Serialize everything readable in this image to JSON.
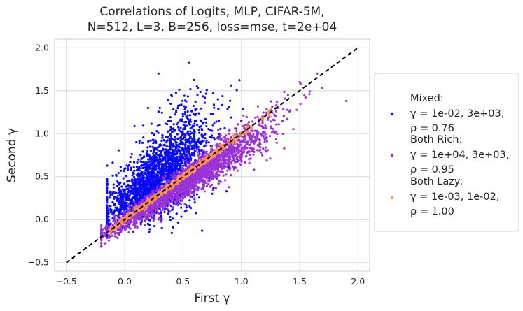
{
  "chart_data": {
    "type": "scatter",
    "title_line1": "Correlations of Logits, MLP, CIFAR-5M,",
    "title_line2": "N=512, L=3, B=256, loss=mse, t=2e+04",
    "xlabel": "First γ",
    "ylabel": "Second γ",
    "xlim": [
      -0.6,
      2.1
    ],
    "ylim": [
      -0.6,
      2.1
    ],
    "xticks": [
      -0.5,
      0.0,
      0.5,
      1.0,
      1.5,
      2.0
    ],
    "xtick_labels": [
      "−0.5",
      "0.0",
      "0.5",
      "1.0",
      "1.5",
      "2.0"
    ],
    "yticks": [
      -0.5,
      0.0,
      0.5,
      1.0,
      1.5,
      2.0
    ],
    "ytick_labels": [
      "−0.5",
      "0.0",
      "0.5",
      "1.0",
      "1.5",
      "2.0"
    ],
    "grid": true,
    "legend_position": "right, outside plot",
    "reference_line": {
      "style": "dashed",
      "color": "#000000",
      "x": [
        -0.5,
        2.0
      ],
      "y": [
        -0.5,
        2.0
      ]
    },
    "series": [
      {
        "name": "Mixed:",
        "label_lines": [
          "Mixed:",
          "γ = 1e-02, 3e+03,",
          "ρ = 0.76"
        ],
        "color": "#0a0af5",
        "x_range": [
          -0.15,
          1.1
        ],
        "correlation": 0.76,
        "sample_points": [
          [
            0.29,
            1.7
          ],
          [
            0.55,
            1.83
          ],
          [
            0.2,
            1.3
          ],
          [
            0.4,
            1.45
          ],
          [
            0.62,
            1.55
          ],
          [
            0.1,
            0.9
          ],
          [
            0.3,
            1.1
          ],
          [
            0.5,
            1.2
          ],
          [
            0.8,
            1.4
          ],
          [
            1.0,
            1.15
          ],
          [
            0.05,
            0.3
          ],
          [
            0.2,
            -0.05
          ],
          [
            0.35,
            0.6
          ],
          [
            0.7,
            0.9
          ],
          [
            -0.08,
            0.05
          ]
        ]
      },
      {
        "name": "Both Rich:",
        "label_lines": [
          "Both Rich:",
          "γ = 1e+04, 3e+03,",
          "ρ = 0.95"
        ],
        "color": "#9a33d6",
        "x_range": [
          -0.2,
          1.9
        ],
        "correlation": 0.95,
        "sample_points": [
          [
            1.9,
            1.38
          ],
          [
            1.65,
            1.7
          ],
          [
            1.5,
            1.6
          ],
          [
            1.4,
            1.45
          ],
          [
            1.2,
            0.9
          ],
          [
            1.0,
            0.7
          ],
          [
            0.8,
            0.6
          ],
          [
            0.6,
            0.4
          ],
          [
            0.4,
            0.2
          ],
          [
            0.2,
            0.05
          ],
          [
            0.0,
            -0.1
          ],
          [
            1.3,
            1.3
          ],
          [
            0.9,
            1.05
          ],
          [
            0.5,
            0.55
          ],
          [
            1.55,
            1.42
          ]
        ]
      },
      {
        "name": "Both Lazy:",
        "label_lines": [
          "Both Lazy:",
          "γ = 1e-03, 1e-02,",
          "ρ = 1.00"
        ],
        "color": "#ff8c5a",
        "x_range": [
          -0.12,
          1.25
        ],
        "correlation": 1.0,
        "sample_points": [
          [
            -0.1,
            -0.1
          ],
          [
            0.0,
            0.0
          ],
          [
            0.2,
            0.2
          ],
          [
            0.4,
            0.4
          ],
          [
            0.6,
            0.6
          ],
          [
            0.8,
            0.8
          ],
          [
            1.0,
            1.0
          ],
          [
            1.2,
            1.2
          ]
        ]
      }
    ]
  }
}
